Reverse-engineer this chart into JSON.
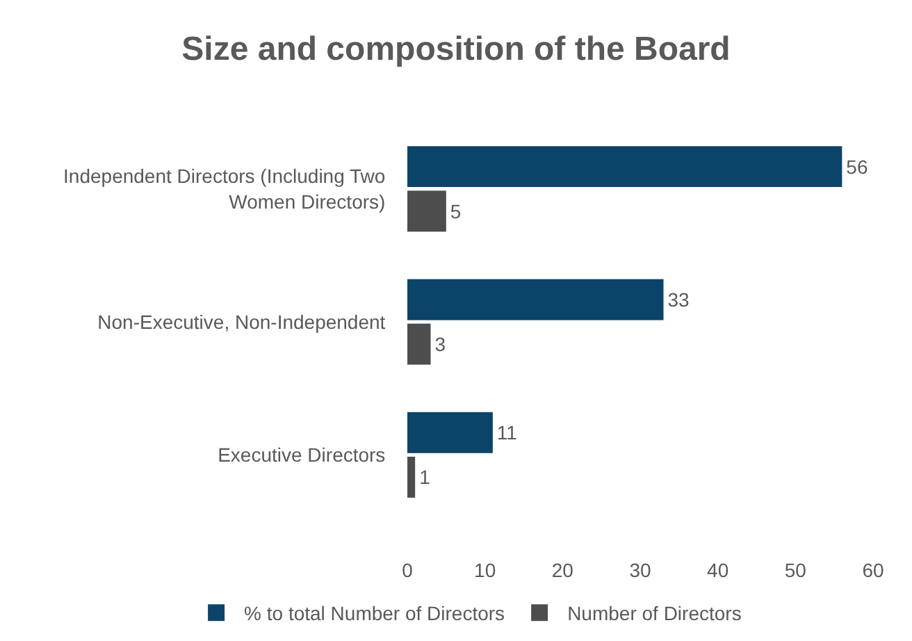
{
  "chart_data": {
    "type": "bar",
    "orientation": "horizontal",
    "title": "Size and composition of the Board",
    "categories": [
      "Independent Directors (Including Two Women Directors)",
      "Non-Executive, Non-Independent",
      "Executive Directors"
    ],
    "series": [
      {
        "name": "% to total Number of Directors",
        "color": "#0b4468",
        "values": [
          56,
          33,
          11
        ]
      },
      {
        "name": "Number of Directors",
        "color": "#4d4d4d",
        "values": [
          5,
          3,
          1
        ]
      }
    ],
    "xlim": [
      0,
      60
    ],
    "xticks": [
      0,
      10,
      20,
      30,
      40,
      50,
      60
    ],
    "data_labels": true,
    "legend": "bottom"
  }
}
